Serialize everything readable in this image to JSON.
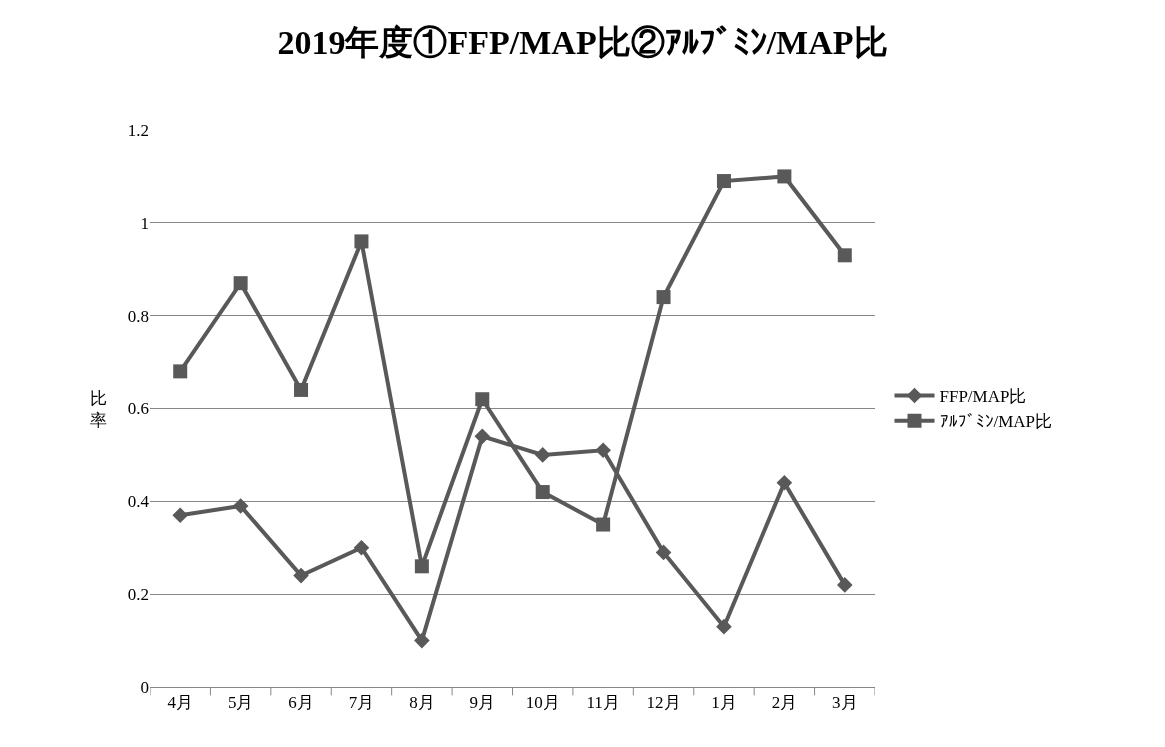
{
  "chart_data": {
    "type": "line",
    "title": "2019年度①FFP/MAP比②ｱﾙﾌﾞﾐﾝ/MAP比",
    "ylabel": "比率",
    "categories": [
      "4月",
      "5月",
      "6月",
      "7月",
      "8月",
      "9月",
      "10月",
      "11月",
      "12月",
      "1月",
      "2月",
      "3月"
    ],
    "series": [
      {
        "name": "FFP/MAP比",
        "color": "#595959",
        "marker": "diamond",
        "values": [
          0.37,
          0.39,
          0.24,
          0.3,
          0.1,
          0.54,
          0.5,
          0.51,
          0.29,
          0.13,
          0.44,
          0.22
        ]
      },
      {
        "name": "ｱﾙﾌﾞﾐﾝ/MAP比",
        "color": "#595959",
        "marker": "square",
        "values": [
          0.68,
          0.87,
          0.64,
          0.96,
          0.26,
          0.62,
          0.42,
          0.35,
          0.84,
          1.09,
          1.1,
          0.93
        ]
      }
    ],
    "ylim": [
      0,
      1.2
    ],
    "yticks": [
      0,
      0.2,
      0.4,
      0.6,
      0.8,
      1,
      1.2
    ],
    "grid": "y",
    "legend": "right",
    "line_style": "solid"
  }
}
